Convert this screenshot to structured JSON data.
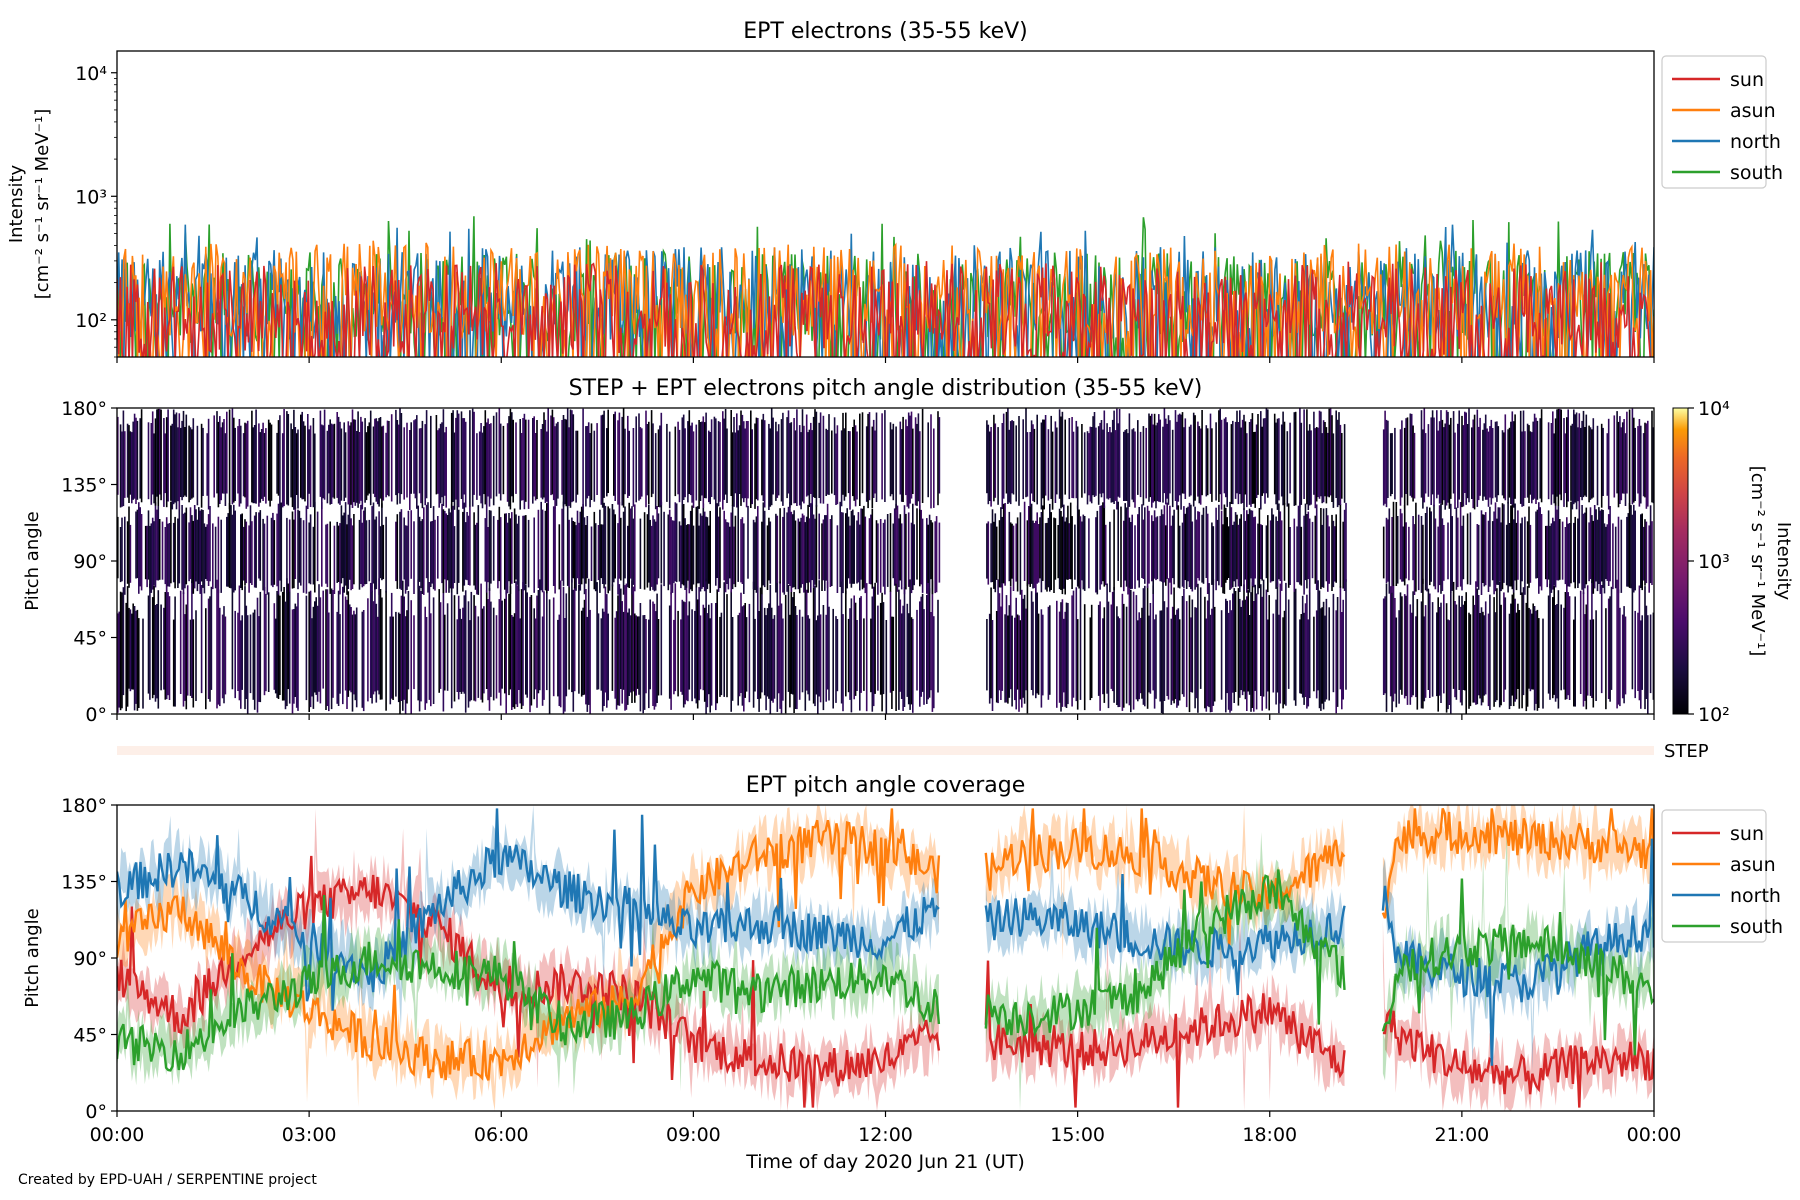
{
  "credit": "Created by EPD-UAH / SERPENTINE project",
  "series_colors": {
    "sun": "#d62728",
    "asun": "#ff7f0e",
    "north": "#1f77b4",
    "south": "#2ca02c"
  },
  "chart_data": [
    {
      "type": "line",
      "title": "EPT electrons (35-55 keV)",
      "ylabel": "Intensity",
      "ylabel_units": "[cm⁻² s⁻¹ sr⁻¹ MeV⁻¹]",
      "yscale": "log",
      "ylim": [
        50,
        15000
      ],
      "ytick_values": [
        100,
        1000,
        10000
      ],
      "ytick_labels": [
        "10²",
        "10³",
        "10⁴"
      ],
      "legend_placement": "outside-right-top",
      "x_hours": [
        0,
        24
      ],
      "series": [
        {
          "name": "sun",
          "color": "#d62728",
          "typical_level": 110,
          "peak_level": 300
        },
        {
          "name": "asun",
          "color": "#ff7f0e",
          "typical_level": 160,
          "peak_level": 450
        },
        {
          "name": "north",
          "color": "#1f77b4",
          "typical_level": 150,
          "peak_level": 600
        },
        {
          "name": "south",
          "color": "#2ca02c",
          "typical_level": 140,
          "peak_level": 700
        }
      ]
    },
    {
      "type": "heatmap",
      "title": "STEP + EPT electrons pitch angle distribution (35-55 keV)",
      "ylabel": "Pitch angle",
      "ylim": [
        0,
        180
      ],
      "ytick_labels": [
        "0°",
        "45°",
        "90°",
        "135°",
        "180°"
      ],
      "colorbar": {
        "label": "Intensity",
        "units": "[cm⁻² s⁻¹ sr⁻¹ MeV⁻¹]",
        "scale": "log",
        "range": [
          100,
          10000
        ],
        "tick_labels": [
          "10²",
          "10³",
          "10⁴"
        ],
        "colormap": "inferno"
      },
      "data_gaps_hours": [
        [
          12.85,
          13.55
        ],
        [
          19.2,
          19.75
        ]
      ]
    },
    {
      "type": "area",
      "label": "STEP"
    },
    {
      "type": "line",
      "title": "EPT pitch angle coverage",
      "ylabel": "Pitch angle",
      "xlabel": "Time of day 2020 Jun 21 (UT)",
      "ylim": [
        0,
        180
      ],
      "ytick_labels": [
        "0°",
        "45°",
        "90°",
        "135°",
        "180°"
      ],
      "xtick_labels": [
        "00:00",
        "03:00",
        "06:00",
        "09:00",
        "12:00",
        "15:00",
        "18:00",
        "21:00",
        "00:00"
      ],
      "legend_placement": "outside-right-top",
      "data_gaps_hours": [
        [
          12.85,
          13.55
        ],
        [
          19.2,
          19.75
        ]
      ],
      "series": [
        {
          "name": "sun",
          "color": "#d62728",
          "hours": [
            0,
            1,
            2,
            3,
            4,
            5,
            6,
            7,
            8,
            9,
            10,
            11,
            12,
            12.8,
            13.6,
            14,
            15,
            16,
            17,
            18,
            19.2,
            19.8,
            20,
            21,
            22,
            23,
            24
          ],
          "pitch_deg": [
            80,
            55,
            95,
            120,
            130,
            110,
            70,
            75,
            70,
            40,
            30,
            25,
            30,
            45,
            40,
            40,
            35,
            40,
            50,
            60,
            25,
            55,
            45,
            25,
            20,
            30,
            30
          ]
        },
        {
          "name": "asun",
          "color": "#ff7f0e",
          "hours": [
            0,
            1,
            2,
            3,
            4,
            5,
            6,
            7,
            8,
            9,
            10,
            11,
            12,
            12.8,
            13.6,
            14,
            15,
            16,
            17,
            18,
            19.2,
            19.8,
            20,
            21,
            22,
            23,
            24
          ],
          "pitch_deg": [
            100,
            120,
            80,
            60,
            40,
            30,
            30,
            55,
            65,
            130,
            150,
            160,
            155,
            140,
            140,
            150,
            155,
            150,
            135,
            125,
            155,
            125,
            160,
            165,
            160,
            158,
            152
          ]
        },
        {
          "name": "north",
          "color": "#1f77b4",
          "hours": [
            0,
            1,
            2,
            3,
            4,
            5,
            6,
            7,
            8,
            9,
            10,
            11,
            12,
            12.8,
            13.6,
            14,
            15,
            16,
            17,
            18,
            19.2,
            19.8,
            20,
            21,
            22,
            23,
            24
          ],
          "pitch_deg": [
            130,
            145,
            125,
            100,
            80,
            120,
            150,
            130,
            120,
            105,
            110,
            105,
            100,
            120,
            110,
            115,
            110,
            100,
            95,
            100,
            110,
            130,
            90,
            80,
            75,
            95,
            108
          ]
        },
        {
          "name": "south",
          "color": "#2ca02c",
          "hours": [
            0,
            1,
            2,
            3,
            4,
            5,
            6,
            7,
            8,
            9,
            10,
            11,
            12,
            12.8,
            13.6,
            14,
            15,
            16,
            17,
            18,
            19.2,
            19.8,
            20,
            21,
            22,
            23,
            24
          ],
          "pitch_deg": [
            40,
            35,
            60,
            75,
            90,
            85,
            80,
            50,
            55,
            80,
            70,
            75,
            80,
            60,
            60,
            55,
            60,
            70,
            110,
            130,
            80,
            40,
            85,
            95,
            100,
            90,
            70
          ]
        }
      ]
    }
  ]
}
